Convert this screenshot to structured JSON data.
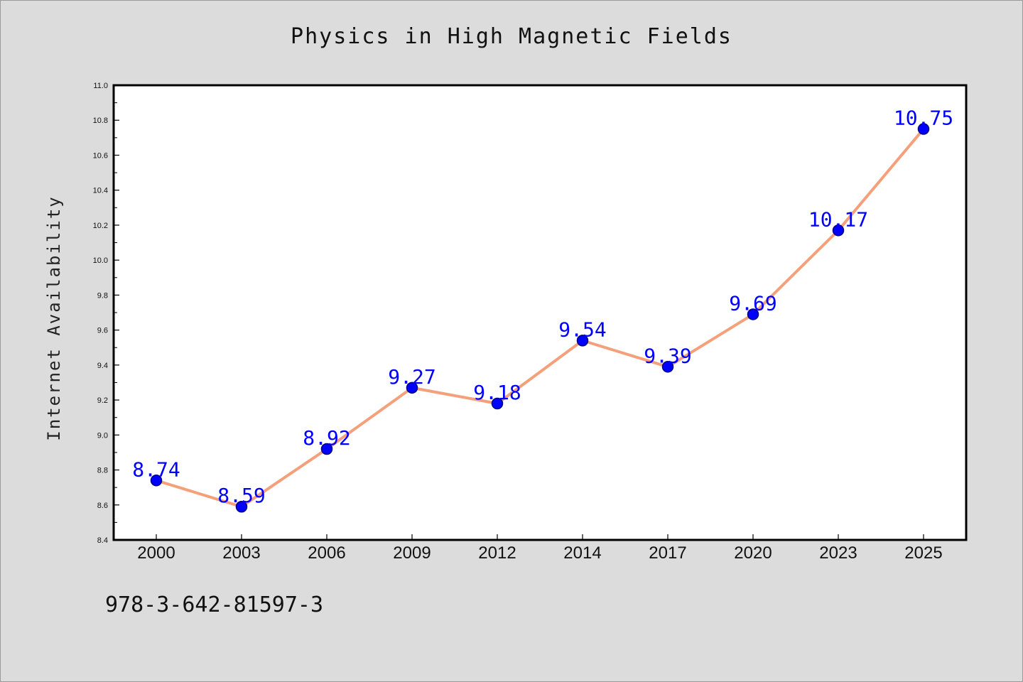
{
  "title": "Physics in High Magnetic Fields",
  "footer_text": "978-3-642-81597-3",
  "colors": {
    "background": "#dcdcdc",
    "plot_background": "#ffffff",
    "line": "#f4a07a",
    "marker_fill": "#0000ff",
    "marker_edge": "#000080",
    "data_label": "#0000ff"
  },
  "chart_data": {
    "type": "line",
    "title": "Physics in High Magnetic Fields",
    "xlabel": "",
    "ylabel": "Internet Availability",
    "categories": [
      "2000",
      "2003",
      "2006",
      "2009",
      "2012",
      "2014",
      "2017",
      "2020",
      "2023",
      "2025"
    ],
    "series": [
      {
        "values": [
          8.74,
          8.59,
          8.92,
          9.27,
          9.18,
          9.54,
          9.39,
          9.69,
          10.17,
          10.75
        ]
      }
    ],
    "data_labels": [
      "8.74",
      "8.59",
      "8.92",
      "9.27",
      "9.18",
      "9.54",
      "9.39",
      "9.69",
      "10.17",
      "10.75"
    ],
    "ylim": [
      8.4,
      11.0
    ],
    "yticks": [
      "8.4",
      "8.6",
      "8.8",
      "9.0",
      "9.2",
      "9.4",
      "9.6",
      "9.8",
      "10.0",
      "10.2",
      "10.4",
      "10.6",
      "10.8",
      "11.0"
    ],
    "grid": false,
    "legend": "none"
  }
}
